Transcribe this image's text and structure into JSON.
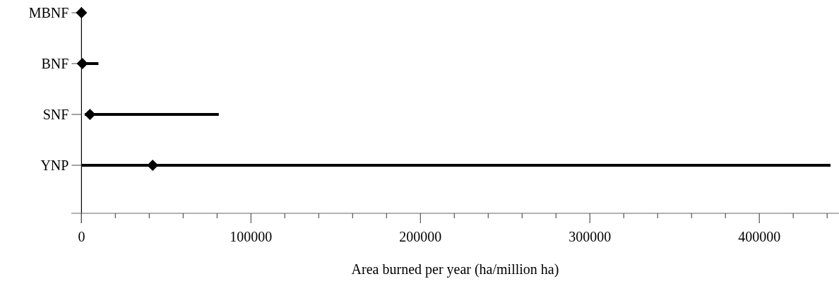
{
  "chart_data": {
    "type": "bar",
    "xlabel": "Area burned per year (ha/million ha)",
    "categories": [
      "MBNF",
      "BNF",
      "SNF",
      "YNP"
    ],
    "orientation": "horizontal",
    "marker": "diamond",
    "series": [
      {
        "color": "#000000",
        "base": [
          null,
          0,
          2000,
          0
        ],
        "values": [
          null,
          10000,
          79000,
          442000
        ]
      },
      {
        "type": "scatter",
        "color": "#000000",
        "values": [
          0,
          500,
          5000,
          42000
        ]
      }
    ],
    "xlim": [
      -6000,
      447000
    ],
    "xticks": [
      0,
      {
        "value": 20000,
        "label": null
      },
      {
        "value": 40000,
        "label": null
      },
      {
        "value": 60000,
        "label": null
      },
      {
        "value": 80000,
        "label": null
      },
      100000,
      {
        "value": 120000,
        "label": null
      },
      {
        "value": 140000,
        "label": null
      },
      {
        "value": 160000,
        "label": null
      },
      {
        "value": 180000,
        "label": null
      },
      200000,
      {
        "value": 220000,
        "label": null
      },
      {
        "value": 240000,
        "label": null
      },
      {
        "value": 260000,
        "label": null
      },
      {
        "value": 280000,
        "label": null
      },
      300000,
      {
        "value": 320000,
        "label": null
      },
      {
        "value": 340000,
        "label": null
      },
      {
        "value": 360000,
        "label": null
      },
      {
        "value": 380000,
        "label": null
      },
      400000,
      {
        "value": 420000,
        "label": null
      },
      {
        "value": 440000,
        "label": null
      }
    ],
    "grid": false
  }
}
